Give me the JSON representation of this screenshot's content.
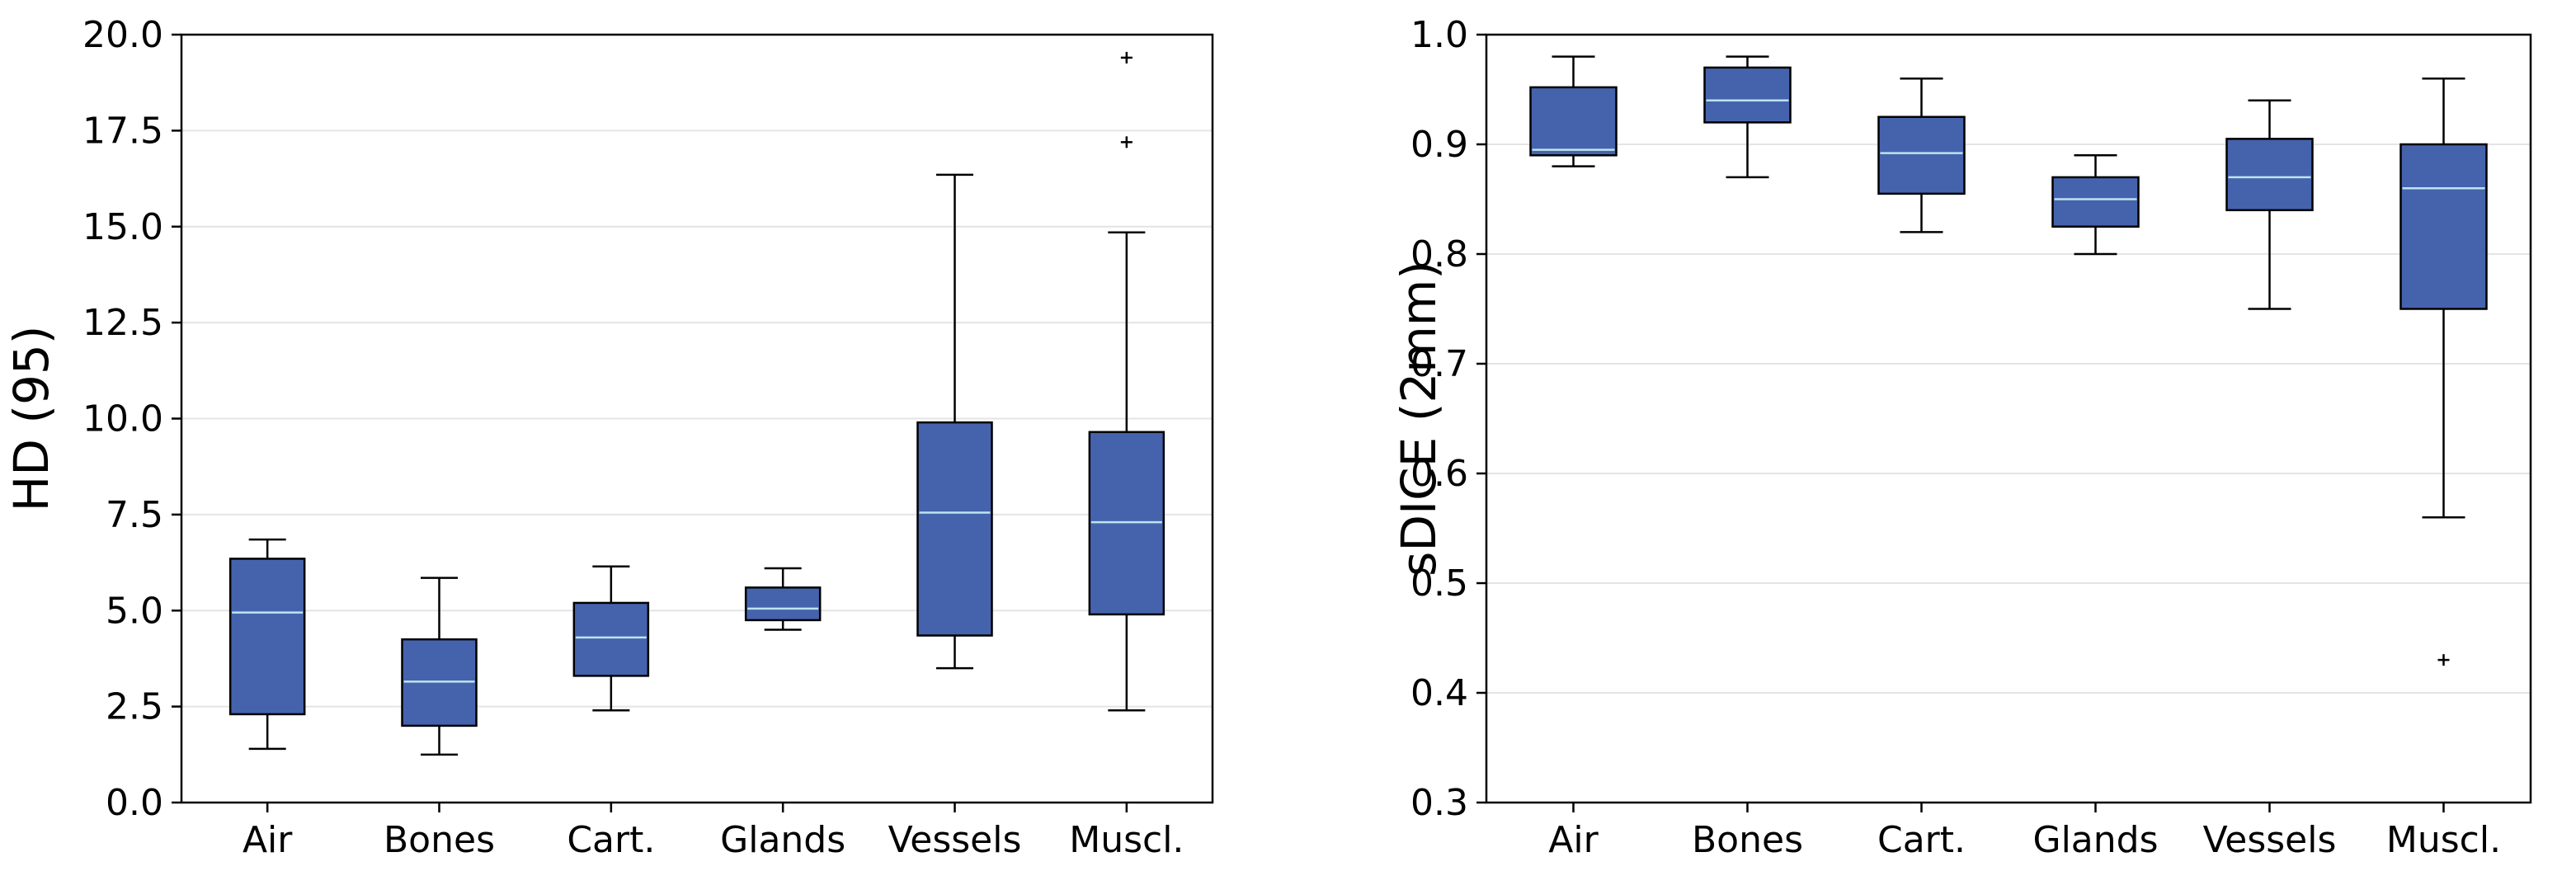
{
  "colors": {
    "box_fill": "#4563ad",
    "median": "#bfe3ef",
    "grid": "#e4e4e4",
    "axis": "#000000"
  },
  "chart_data": [
    {
      "id": "hd95",
      "type": "box",
      "title": "",
      "xlabel": "",
      "ylabel": "HD (95)",
      "ylim": [
        0,
        20
      ],
      "yticks": [
        0,
        2.5,
        5,
        7.5,
        10,
        12.5,
        15,
        17.5,
        20
      ],
      "ytick_labels": [
        "0.0",
        "2.5",
        "5.0",
        "7.5",
        "10.0",
        "12.5",
        "15.0",
        "17.5",
        "20.0"
      ],
      "grid": true,
      "categories": [
        "Air",
        "Bones",
        "Cart.",
        "Glands",
        "Vessels",
        "Muscl."
      ],
      "boxes": [
        {
          "whisker_low": 1.4,
          "q1": 2.3,
          "median": 4.95,
          "q3": 6.35,
          "whisker_high": 6.85,
          "outliers": []
        },
        {
          "whisker_low": 1.25,
          "q1": 2.0,
          "median": 3.15,
          "q3": 4.25,
          "whisker_high": 5.85,
          "outliers": []
        },
        {
          "whisker_low": 2.4,
          "q1": 3.3,
          "median": 4.3,
          "q3": 5.2,
          "whisker_high": 6.15,
          "outliers": []
        },
        {
          "whisker_low": 4.5,
          "q1": 4.75,
          "median": 5.05,
          "q3": 5.6,
          "whisker_high": 6.1,
          "outliers": []
        },
        {
          "whisker_low": 3.5,
          "q1": 4.35,
          "median": 7.55,
          "q3": 9.9,
          "whisker_high": 16.35,
          "outliers": []
        },
        {
          "whisker_low": 2.4,
          "q1": 4.9,
          "median": 7.3,
          "q3": 9.65,
          "whisker_high": 14.85,
          "outliers": [
            17.2,
            19.4
          ]
        }
      ]
    },
    {
      "id": "sdice",
      "type": "box",
      "title": "",
      "xlabel": "",
      "ylabel": "sDICE (2mm)",
      "ylim": [
        0.3,
        1.0
      ],
      "yticks": [
        0.3,
        0.4,
        0.5,
        0.6,
        0.7,
        0.8,
        0.9,
        1.0
      ],
      "ytick_labels": [
        "0.3",
        "0.4",
        "0.5",
        "0.6",
        "0.7",
        "0.8",
        "0.9",
        "1.0"
      ],
      "grid": true,
      "categories": [
        "Air",
        "Bones",
        "Cart.",
        "Glands",
        "Vessels",
        "Muscl."
      ],
      "boxes": [
        {
          "whisker_low": 0.88,
          "q1": 0.89,
          "median": 0.895,
          "q3": 0.952,
          "whisker_high": 0.98,
          "outliers": []
        },
        {
          "whisker_low": 0.87,
          "q1": 0.92,
          "median": 0.94,
          "q3": 0.97,
          "whisker_high": 0.98,
          "outliers": []
        },
        {
          "whisker_low": 0.82,
          "q1": 0.855,
          "median": 0.892,
          "q3": 0.925,
          "whisker_high": 0.96,
          "outliers": []
        },
        {
          "whisker_low": 0.8,
          "q1": 0.825,
          "median": 0.85,
          "q3": 0.87,
          "whisker_high": 0.89,
          "outliers": []
        },
        {
          "whisker_low": 0.75,
          "q1": 0.84,
          "median": 0.87,
          "q3": 0.905,
          "whisker_high": 0.94,
          "outliers": []
        },
        {
          "whisker_low": 0.56,
          "q1": 0.75,
          "median": 0.86,
          "q3": 0.9,
          "whisker_high": 0.96,
          "outliers": [
            0.43
          ]
        }
      ]
    }
  ]
}
